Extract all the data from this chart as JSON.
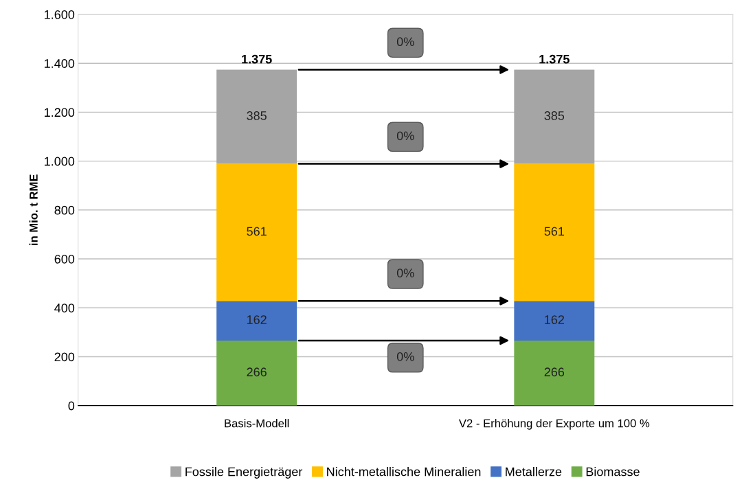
{
  "chart_data": {
    "type": "bar",
    "stacked": true,
    "ylabel": "in Mio. t RME",
    "categories": [
      "Basis-Modell",
      "V2 - Erhöhung der Exporte um 100 %"
    ],
    "series": [
      {
        "name": "Biomasse",
        "color": "#70ad47",
        "values": [
          266,
          266
        ]
      },
      {
        "name": "Metallerze",
        "color": "#4472c4",
        "values": [
          162,
          162
        ]
      },
      {
        "name": "Nicht-metallische Mineralien",
        "color": "#ffc000",
        "values": [
          561,
          561
        ]
      },
      {
        "name": "Fossile Energieträger",
        "color": "#a5a5a5",
        "values": [
          385,
          385
        ]
      }
    ],
    "ylim": [
      0,
      1600
    ],
    "yticks": [
      0,
      {
        "value": 200,
        "label": "200"
      },
      {
        "value": 400,
        "label": "400"
      },
      {
        "value": 600,
        "label": "600"
      },
      {
        "value": 800,
        "label": "800"
      },
      {
        "value": 1000,
        "label": "1.000"
      },
      {
        "value": 1200,
        "label": "1.200"
      },
      {
        "value": 1400,
        "label": "1.400"
      },
      {
        "value": 1600,
        "label": "1.600"
      }
    ],
    "data_labels": true,
    "totals": [
      "1.375",
      "1.375"
    ],
    "annotations": [
      "0%",
      "0%",
      "0%",
      "0%"
    ],
    "grid": "y",
    "legend": "bottom"
  }
}
